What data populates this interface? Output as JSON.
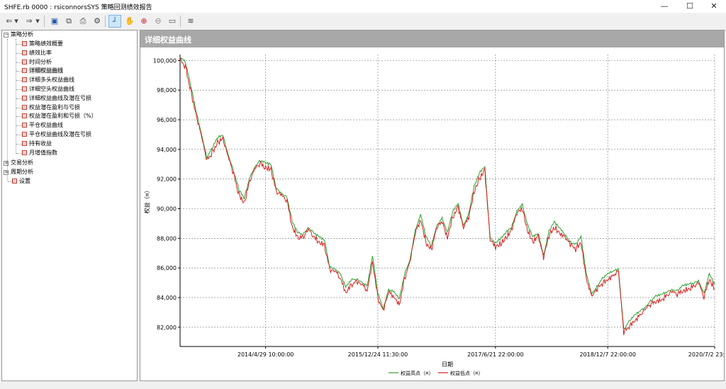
{
  "window": {
    "title": "SHFE.rb 0000 : rsiconnorsSYS 策略回测绩效报告",
    "minimize": "—",
    "maximize": "☐",
    "close": "✕"
  },
  "toolbar": {
    "buttons": [
      {
        "name": "back-icon",
        "glyph": "⇐"
      },
      {
        "name": "back-dropdown-icon",
        "glyph": "▾"
      },
      {
        "name": "forward-icon",
        "glyph": "⇒"
      },
      {
        "name": "forward-dropdown-icon",
        "glyph": "▾"
      },
      {
        "name": "save-icon",
        "glyph": "▣"
      },
      {
        "name": "copy-icon",
        "glyph": "⧉"
      },
      {
        "name": "print-icon",
        "glyph": "⎙"
      },
      {
        "name": "settings-icon",
        "glyph": "⚙"
      },
      {
        "name": "crosshair-icon",
        "glyph": "┘"
      },
      {
        "name": "pan-hand-icon",
        "glyph": "✋"
      },
      {
        "name": "zoom-in-icon",
        "glyph": "⊕"
      },
      {
        "name": "zoom-out-icon",
        "glyph": "⊖"
      },
      {
        "name": "zoom-fit-icon",
        "glyph": "▭"
      },
      {
        "name": "chart-style-icon",
        "glyph": "≋"
      }
    ]
  },
  "tree": {
    "root_strategy": "策略分析",
    "strategy_items": [
      "策略绩效概要",
      "绩效比率",
      "时间分析",
      "详细权益曲线",
      "详细多头权益曲线",
      "详细空头权益曲线",
      "详细权益曲线及潜在亏损",
      "权益潜在盈利与亏损",
      "权益潜在盈利和亏损（%）",
      "平仓权益曲线",
      "平仓权益曲线及潜在亏损",
      "持有收益",
      "月增值指数"
    ],
    "selected_index": 3,
    "trade_analysis": "交易分析",
    "period_analysis": "周期分析",
    "settings": "设置"
  },
  "panel": {
    "title": "详细权益曲线"
  },
  "chart_data": {
    "type": "line",
    "ylabel": "权益（¤）",
    "xlabel": "日期",
    "y_ticks": [
      "100,000",
      "98,000",
      "96,000",
      "94,000",
      "92,000",
      "90,000",
      "88,000",
      "86,000",
      "84,000",
      "82,000"
    ],
    "y_tick_values": [
      100000,
      98000,
      96000,
      94000,
      92000,
      90000,
      88000,
      86000,
      84000,
      82000
    ],
    "ylim": [
      80700,
      100400
    ],
    "x_ticks": [
      "2014/4/29 10:00:00",
      "2015/12/24 11:30:00",
      "2017/6/21 22:00:00",
      "2018/12/7 22:00:00",
      "2020/7/2 23:00:00"
    ],
    "grid": true,
    "colors": {
      "high": "#2e9e2e",
      "low": "#d62020"
    },
    "series": [
      {
        "name": "权益高点（¤）",
        "color": "#2e9e2e"
      },
      {
        "name": "权益低点（¤）",
        "color": "#d62020"
      }
    ],
    "x_index_range": [
      0,
      100
    ],
    "x_tick_index": [
      16,
      37,
      59,
      80,
      100
    ],
    "values": [
      [
        0,
        100200
      ],
      [
        1,
        99800
      ],
      [
        2,
        98200
      ],
      [
        3,
        96500
      ],
      [
        4,
        95000
      ],
      [
        5,
        93400
      ],
      [
        6,
        94000
      ],
      [
        7,
        94700
      ],
      [
        8,
        94900
      ],
      [
        9,
        93600
      ],
      [
        10,
        92500
      ],
      [
        11,
        91200
      ],
      [
        12,
        90600
      ],
      [
        13,
        92000
      ],
      [
        14,
        92800
      ],
      [
        15,
        93200
      ],
      [
        16,
        93000
      ],
      [
        17,
        92900
      ],
      [
        18,
        91300
      ],
      [
        19,
        91000
      ],
      [
        20,
        90700
      ],
      [
        21,
        89000
      ],
      [
        22,
        88300
      ],
      [
        23,
        88200
      ],
      [
        24,
        88700
      ],
      [
        25,
        88300
      ],
      [
        26,
        88000
      ],
      [
        27,
        87800
      ],
      [
        28,
        86000
      ],
      [
        29,
        85900
      ],
      [
        30,
        85500
      ],
      [
        31,
        84600
      ],
      [
        32,
        85100
      ],
      [
        33,
        85200
      ],
      [
        34,
        85000
      ],
      [
        35,
        84700
      ],
      [
        36,
        86700
      ],
      [
        37,
        84200
      ],
      [
        38,
        83200
      ],
      [
        39,
        84500
      ],
      [
        40,
        84300
      ],
      [
        41,
        83800
      ],
      [
        42,
        85500
      ],
      [
        43,
        86500
      ],
      [
        44,
        88500
      ],
      [
        45,
        89500
      ],
      [
        46,
        88000
      ],
      [
        47,
        87400
      ],
      [
        48,
        88800
      ],
      [
        49,
        89300
      ],
      [
        50,
        88300
      ],
      [
        51,
        89700
      ],
      [
        52,
        90300
      ],
      [
        53,
        88800
      ],
      [
        54,
        89600
      ],
      [
        55,
        91400
      ],
      [
        56,
        92300
      ],
      [
        57,
        92800
      ],
      [
        58,
        88000
      ],
      [
        59,
        87600
      ],
      [
        60,
        87900
      ],
      [
        61,
        88300
      ],
      [
        62,
        88700
      ],
      [
        63,
        89800
      ],
      [
        64,
        90200
      ],
      [
        65,
        88800
      ],
      [
        66,
        88000
      ],
      [
        67,
        88300
      ],
      [
        68,
        86800
      ],
      [
        69,
        88400
      ],
      [
        70,
        89000
      ],
      [
        71,
        88600
      ],
      [
        72,
        88200
      ],
      [
        73,
        87700
      ],
      [
        74,
        87500
      ],
      [
        75,
        88000
      ],
      [
        76,
        85500
      ],
      [
        77,
        84200
      ],
      [
        78,
        84700
      ],
      [
        79,
        85200
      ],
      [
        80,
        85500
      ],
      [
        81,
        85700
      ],
      [
        82,
        85900
      ],
      [
        83,
        81800
      ],
      [
        84,
        82300
      ],
      [
        85,
        82700
      ],
      [
        86,
        83000
      ],
      [
        87,
        83300
      ],
      [
        88,
        83700
      ],
      [
        89,
        84000
      ],
      [
        90,
        84100
      ],
      [
        91,
        84300
      ],
      [
        92,
        84500
      ],
      [
        93,
        84400
      ],
      [
        94,
        84700
      ],
      [
        95,
        84800
      ],
      [
        96,
        84900
      ],
      [
        97,
        85100
      ],
      [
        98,
        84200
      ],
      [
        99,
        85500
      ],
      [
        100,
        84800
      ]
    ]
  }
}
